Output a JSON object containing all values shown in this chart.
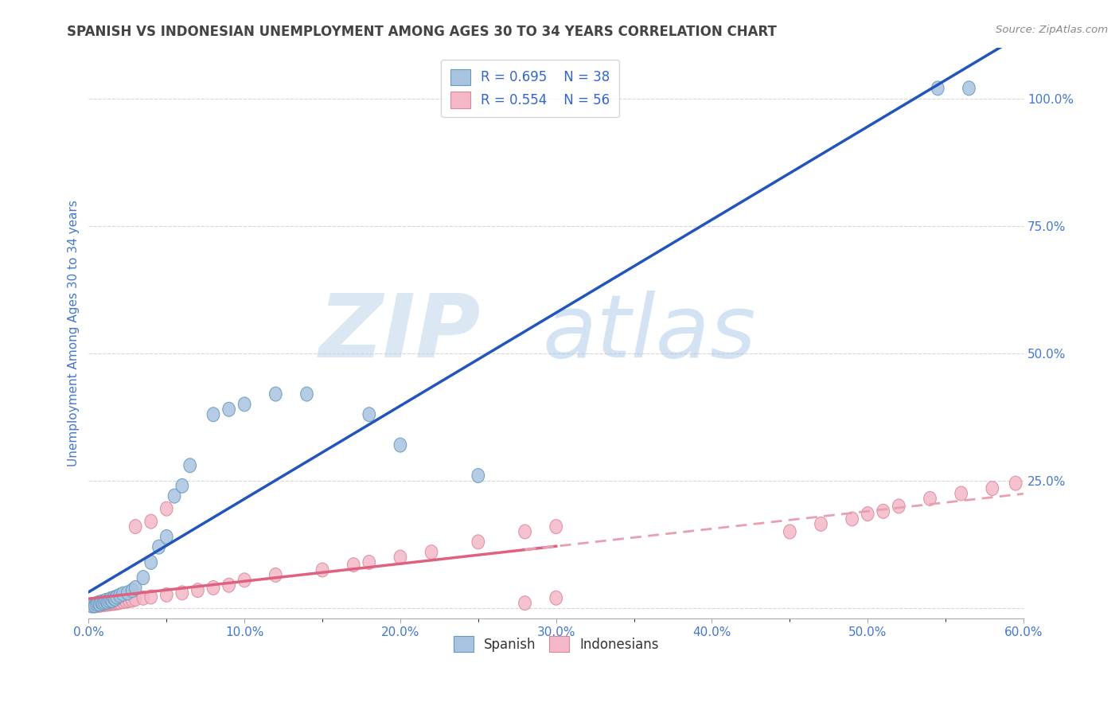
{
  "title": "SPANISH VS INDONESIAN UNEMPLOYMENT AMONG AGES 30 TO 34 YEARS CORRELATION CHART",
  "source": "Source: ZipAtlas.com",
  "ylabel": "Unemployment Among Ages 30 to 34 years",
  "xlim": [
    0.0,
    0.6
  ],
  "ylim": [
    -0.02,
    1.1
  ],
  "yticks": [
    0.0,
    0.25,
    0.5,
    0.75,
    1.0
  ],
  "ytick_labels": [
    "",
    "25.0%",
    "50.0%",
    "75.0%",
    "100.0%"
  ],
  "xtick_labels": [
    "0.0%",
    "",
    "10.0%",
    "",
    "20.0%",
    "",
    "30.0%",
    "",
    "40.0%",
    "",
    "50.0%",
    "",
    "60.0%"
  ],
  "xticks": [
    0.0,
    0.05,
    0.1,
    0.15,
    0.2,
    0.25,
    0.3,
    0.35,
    0.4,
    0.45,
    0.5,
    0.55,
    0.6
  ],
  "watermark_zip": "ZIP",
  "watermark_atlas": "atlas",
  "legend_R1": "R = 0.695",
  "legend_N1": "N = 38",
  "legend_R2": "R = 0.554",
  "legend_N2": "N = 56",
  "blue_scatter_color": "#A8C4E0",
  "pink_scatter_color": "#F4B8C8",
  "blue_line_color": "#2255BB",
  "pink_line_color": "#E06080",
  "pink_dash_color": "#E8A0B0",
  "title_color": "#444444",
  "axis_label_color": "#4477CC",
  "legend_text_color": "#3366CC",
  "background_color": "#FFFFFF",
  "grid_color": "#CCCCCC",
  "spanish_x": [
    0.002,
    0.004,
    0.005,
    0.006,
    0.007,
    0.008,
    0.009,
    0.01,
    0.011,
    0.012,
    0.013,
    0.014,
    0.015,
    0.016,
    0.017,
    0.018,
    0.02,
    0.022,
    0.025,
    0.028,
    0.03,
    0.035,
    0.04,
    0.045,
    0.05,
    0.055,
    0.06,
    0.065,
    0.08,
    0.09,
    0.1,
    0.12,
    0.14,
    0.18,
    0.2,
    0.25,
    0.545,
    0.565
  ],
  "spanish_y": [
    0.005,
    0.005,
    0.008,
    0.01,
    0.008,
    0.012,
    0.01,
    0.012,
    0.015,
    0.012,
    0.015,
    0.018,
    0.015,
    0.02,
    0.018,
    0.022,
    0.025,
    0.028,
    0.03,
    0.035,
    0.04,
    0.06,
    0.09,
    0.12,
    0.14,
    0.22,
    0.24,
    0.28,
    0.38,
    0.39,
    0.4,
    0.42,
    0.42,
    0.38,
    0.32,
    0.26,
    1.02,
    1.02
  ],
  "indonesian_x": [
    0.002,
    0.003,
    0.004,
    0.005,
    0.006,
    0.007,
    0.008,
    0.009,
    0.01,
    0.011,
    0.012,
    0.013,
    0.014,
    0.015,
    0.016,
    0.017,
    0.018,
    0.019,
    0.02,
    0.022,
    0.024,
    0.026,
    0.028,
    0.03,
    0.035,
    0.04,
    0.05,
    0.06,
    0.07,
    0.08,
    0.09,
    0.1,
    0.12,
    0.15,
    0.17,
    0.18,
    0.2,
    0.22,
    0.25,
    0.28,
    0.3,
    0.03,
    0.04,
    0.05,
    0.28,
    0.3,
    0.45,
    0.47,
    0.49,
    0.5,
    0.51,
    0.52,
    0.54,
    0.56,
    0.58,
    0.595
  ],
  "indonesian_y": [
    0.005,
    0.005,
    0.005,
    0.006,
    0.006,
    0.006,
    0.007,
    0.007,
    0.008,
    0.008,
    0.008,
    0.009,
    0.009,
    0.01,
    0.01,
    0.01,
    0.011,
    0.011,
    0.012,
    0.013,
    0.014,
    0.015,
    0.016,
    0.018,
    0.02,
    0.022,
    0.026,
    0.03,
    0.035,
    0.04,
    0.045,
    0.055,
    0.065,
    0.075,
    0.085,
    0.09,
    0.1,
    0.11,
    0.13,
    0.15,
    0.16,
    0.16,
    0.17,
    0.195,
    0.01,
    0.02,
    0.15,
    0.165,
    0.175,
    0.185,
    0.19,
    0.2,
    0.215,
    0.225,
    0.235,
    0.245
  ]
}
